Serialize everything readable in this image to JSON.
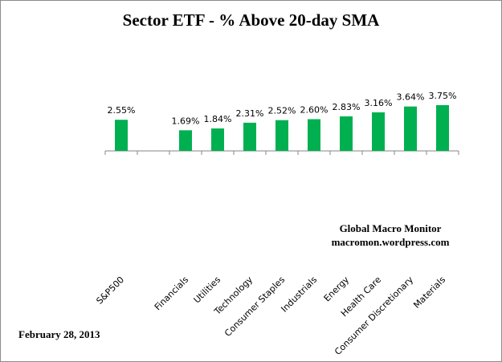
{
  "chart_data": {
    "type": "bar",
    "title": "Sector ETF - % Above 20-day SMA",
    "categories": [
      "S&P500",
      "",
      "Financials",
      "Utilities",
      "Technology",
      "Consumer Staples",
      "Industrials",
      "Energy",
      "Health Care",
      "Consumer Discretionary",
      "Materials"
    ],
    "values": [
      2.55,
      null,
      1.69,
      1.84,
      2.31,
      2.52,
      2.6,
      2.83,
      3.16,
      3.64,
      3.75
    ],
    "value_labels": [
      "2.55%",
      "",
      "1.69%",
      "1.84%",
      "2.31%",
      "2.52%",
      "2.60%",
      "2.83%",
      "3.16%",
      "3.64%",
      "3.75%"
    ],
    "xlabel": "",
    "ylabel": "",
    "grid": false,
    "bar_color": "#00b050"
  },
  "source": {
    "line1": "Global Macro Monitor",
    "line2": "macromon.wordpress.com"
  },
  "date": "February 28, 2013"
}
